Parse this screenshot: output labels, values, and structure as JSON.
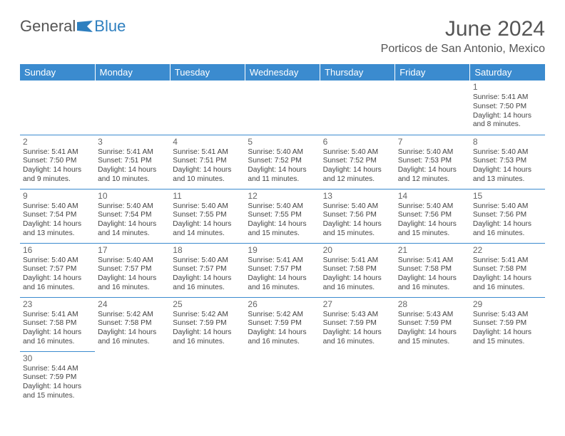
{
  "logo": {
    "name": "General",
    "accent": "Blue"
  },
  "title": "June 2024",
  "location": "Porticos de San Antonio, Mexico",
  "colors": {
    "header_bg": "#3b8bcf",
    "header_text": "#ffffff",
    "border": "#3b8bcf",
    "text": "#444444",
    "muted": "#666666",
    "accent": "#2e7fbf"
  },
  "day_headers": [
    "Sunday",
    "Monday",
    "Tuesday",
    "Wednesday",
    "Thursday",
    "Friday",
    "Saturday"
  ],
  "weeks": [
    [
      null,
      null,
      null,
      null,
      null,
      null,
      {
        "n": "1",
        "sr": "5:41 AM",
        "ss": "7:50 PM",
        "dl": "14 hours and 8 minutes."
      }
    ],
    [
      {
        "n": "2",
        "sr": "5:41 AM",
        "ss": "7:50 PM",
        "dl": "14 hours and 9 minutes."
      },
      {
        "n": "3",
        "sr": "5:41 AM",
        "ss": "7:51 PM",
        "dl": "14 hours and 10 minutes."
      },
      {
        "n": "4",
        "sr": "5:41 AM",
        "ss": "7:51 PM",
        "dl": "14 hours and 10 minutes."
      },
      {
        "n": "5",
        "sr": "5:40 AM",
        "ss": "7:52 PM",
        "dl": "14 hours and 11 minutes."
      },
      {
        "n": "6",
        "sr": "5:40 AM",
        "ss": "7:52 PM",
        "dl": "14 hours and 12 minutes."
      },
      {
        "n": "7",
        "sr": "5:40 AM",
        "ss": "7:53 PM",
        "dl": "14 hours and 12 minutes."
      },
      {
        "n": "8",
        "sr": "5:40 AM",
        "ss": "7:53 PM",
        "dl": "14 hours and 13 minutes."
      }
    ],
    [
      {
        "n": "9",
        "sr": "5:40 AM",
        "ss": "7:54 PM",
        "dl": "14 hours and 13 minutes."
      },
      {
        "n": "10",
        "sr": "5:40 AM",
        "ss": "7:54 PM",
        "dl": "14 hours and 14 minutes."
      },
      {
        "n": "11",
        "sr": "5:40 AM",
        "ss": "7:55 PM",
        "dl": "14 hours and 14 minutes."
      },
      {
        "n": "12",
        "sr": "5:40 AM",
        "ss": "7:55 PM",
        "dl": "14 hours and 15 minutes."
      },
      {
        "n": "13",
        "sr": "5:40 AM",
        "ss": "7:56 PM",
        "dl": "14 hours and 15 minutes."
      },
      {
        "n": "14",
        "sr": "5:40 AM",
        "ss": "7:56 PM",
        "dl": "14 hours and 15 minutes."
      },
      {
        "n": "15",
        "sr": "5:40 AM",
        "ss": "7:56 PM",
        "dl": "14 hours and 16 minutes."
      }
    ],
    [
      {
        "n": "16",
        "sr": "5:40 AM",
        "ss": "7:57 PM",
        "dl": "14 hours and 16 minutes."
      },
      {
        "n": "17",
        "sr": "5:40 AM",
        "ss": "7:57 PM",
        "dl": "14 hours and 16 minutes."
      },
      {
        "n": "18",
        "sr": "5:40 AM",
        "ss": "7:57 PM",
        "dl": "14 hours and 16 minutes."
      },
      {
        "n": "19",
        "sr": "5:41 AM",
        "ss": "7:57 PM",
        "dl": "14 hours and 16 minutes."
      },
      {
        "n": "20",
        "sr": "5:41 AM",
        "ss": "7:58 PM",
        "dl": "14 hours and 16 minutes."
      },
      {
        "n": "21",
        "sr": "5:41 AM",
        "ss": "7:58 PM",
        "dl": "14 hours and 16 minutes."
      },
      {
        "n": "22",
        "sr": "5:41 AM",
        "ss": "7:58 PM",
        "dl": "14 hours and 16 minutes."
      }
    ],
    [
      {
        "n": "23",
        "sr": "5:41 AM",
        "ss": "7:58 PM",
        "dl": "14 hours and 16 minutes."
      },
      {
        "n": "24",
        "sr": "5:42 AM",
        "ss": "7:58 PM",
        "dl": "14 hours and 16 minutes."
      },
      {
        "n": "25",
        "sr": "5:42 AM",
        "ss": "7:59 PM",
        "dl": "14 hours and 16 minutes."
      },
      {
        "n": "26",
        "sr": "5:42 AM",
        "ss": "7:59 PM",
        "dl": "14 hours and 16 minutes."
      },
      {
        "n": "27",
        "sr": "5:43 AM",
        "ss": "7:59 PM",
        "dl": "14 hours and 16 minutes."
      },
      {
        "n": "28",
        "sr": "5:43 AM",
        "ss": "7:59 PM",
        "dl": "14 hours and 15 minutes."
      },
      {
        "n": "29",
        "sr": "5:43 AM",
        "ss": "7:59 PM",
        "dl": "14 hours and 15 minutes."
      }
    ],
    [
      {
        "n": "30",
        "sr": "5:44 AM",
        "ss": "7:59 PM",
        "dl": "14 hours and 15 minutes."
      },
      null,
      null,
      null,
      null,
      null,
      null
    ]
  ],
  "labels": {
    "sunrise": "Sunrise:",
    "sunset": "Sunset:",
    "daylight": "Daylight:"
  }
}
